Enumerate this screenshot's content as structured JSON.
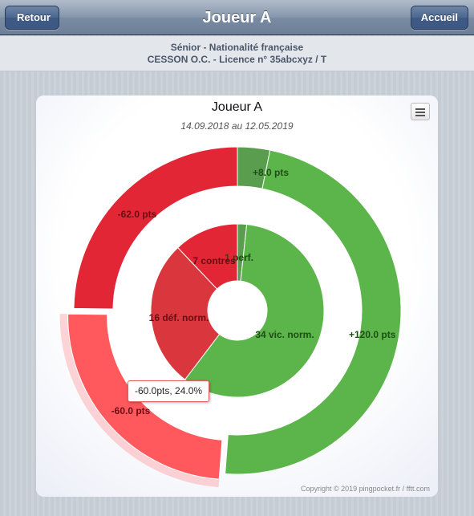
{
  "navbar": {
    "title": "Joueur A",
    "back_label": "Retour",
    "home_label": "Accueil"
  },
  "info": {
    "line1": "Sénior - Nationalité française",
    "line2": "CESSON O.C. - Licence n° 35abcxyz / T"
  },
  "chart_data": {
    "type": "pie",
    "title": "Joueur A",
    "subtitle": "14.09.2018 au 12.05.2019",
    "inner_ring": [
      {
        "label": "1 perf.",
        "value": 1,
        "color": "#5a9d4e"
      },
      {
        "label": "34 vic. norm.",
        "value": 34,
        "color": "#5cb54a"
      },
      {
        "label": "16 déf. norm.",
        "value": 16,
        "color": "#d9363e"
      },
      {
        "label": "7 contres",
        "value": 7,
        "color": "#e32636"
      }
    ],
    "outer_ring": [
      {
        "label": "+8.0 pts",
        "value": 8.0,
        "percent": 3.2,
        "color": "#5a9d4e"
      },
      {
        "label": "+120.0 pts",
        "value": 120.0,
        "percent": 48.0,
        "color": "#5cb54a"
      },
      {
        "label": "-60.0 pts",
        "value": -60.0,
        "percent": 24.0,
        "color": "#ff595e",
        "highlighted": true
      },
      {
        "label": "-62.0 pts",
        "value": -62.0,
        "percent": 24.8,
        "color": "#e32636"
      }
    ],
    "tooltip": "-60.0pts, 24.0%"
  },
  "copyright": "Copyright © 2019 pingpocket.fr / fftt.com",
  "icons": {
    "menu": "hamburger-menu-icon",
    "back": "back-arrow-icon"
  }
}
